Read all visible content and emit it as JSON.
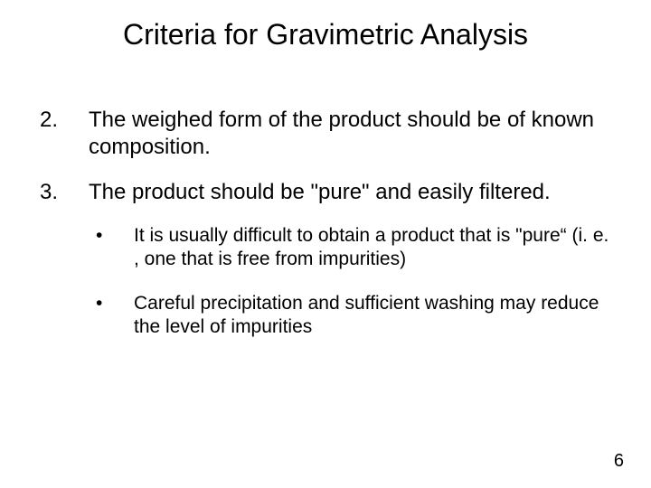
{
  "title": "Criteria for Gravimetric Analysis",
  "items": [
    {
      "marker": "2.",
      "text": "The weighed form of the product should be of known composition."
    },
    {
      "marker": "3.",
      "text": "The product should be \"pure\" and easily filtered.",
      "sub": [
        "It is usually difficult to obtain a product that is \"pure“ (i. e. , one that is free from impurities)",
        "Careful precipitation and sufficient washing may reduce the level of impurities"
      ]
    }
  ],
  "page_number": "6",
  "colors": {
    "background": "#ffffff",
    "text": "#000000"
  },
  "fonts": {
    "title_size_pt": 32,
    "body_size_pt": 24,
    "sub_size_pt": 21,
    "pagenum_size_pt": 20,
    "family": "Arial"
  }
}
